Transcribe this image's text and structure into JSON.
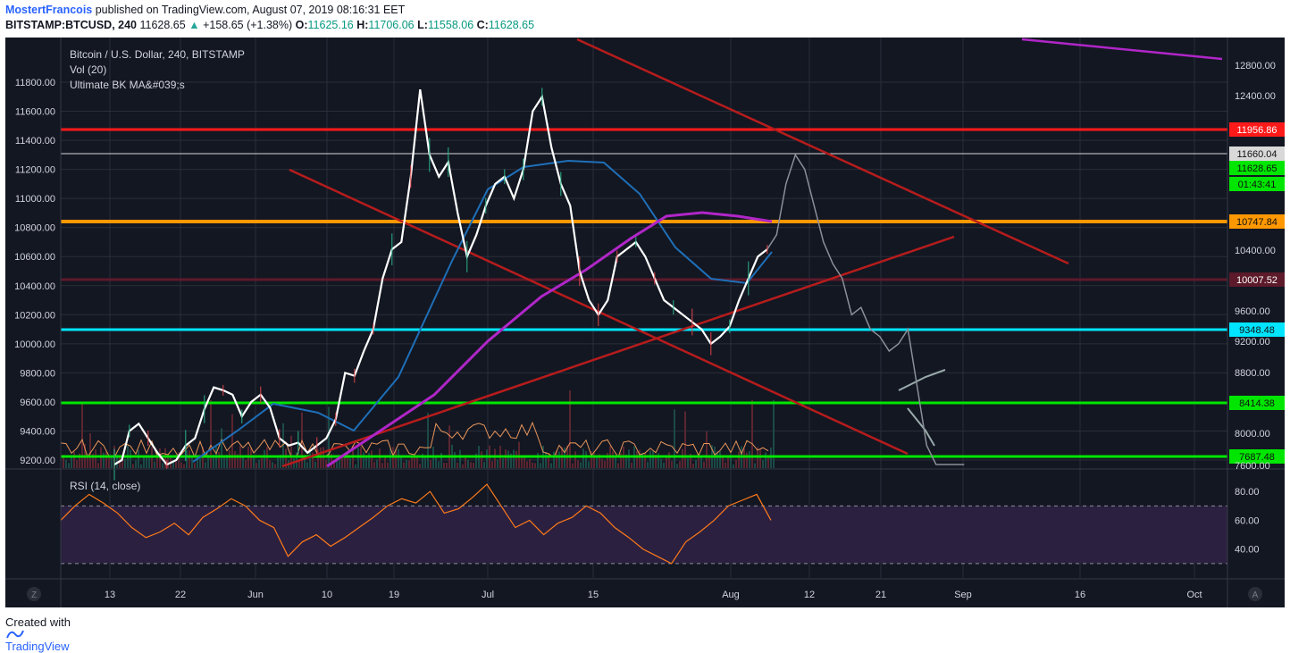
{
  "header": {
    "author": "MostertFrancois",
    "published_text": "published on TradingView.com, August 07, 2019 08:16:31 EET",
    "symbol": "BITSTAMP:BTCUSD, 240",
    "last_price": "11628.65",
    "change": "+158.65 (+1.38%)",
    "open_label": "O:",
    "open_value": "11625.16",
    "high_label": "H:",
    "high_value": "11706.06",
    "low_label": "L:",
    "low_value": "11558.06",
    "close_label": "C:",
    "close_value": "11628.65"
  },
  "legend": {
    "title": "Bitcoin / U.S. Dollar, 240, BITSTAMP",
    "vol": "Vol (20)",
    "ma": "Ultimate BK MA&#039;s"
  },
  "rsi_label": "RSI (14, close)",
  "footer": {
    "created_with": "Created with",
    "brand": "TradingView"
  },
  "colors": {
    "background": "#131722",
    "red_line": "#ff1a1a",
    "orange_line": "#ff9800",
    "dark_red_line": "#5c1a2a",
    "cyan_line": "#00e5ff",
    "green_line": "#00e600",
    "price": "#ffffff",
    "ma_blue": "#1e6fb8",
    "ma_purple": "#b026c8",
    "trendline": "#b71c1c",
    "rsi": "#ff7a1a",
    "rsi_band": "#2b2040"
  },
  "chart_data": [
    {
      "type": "line",
      "title": "Bitcoin / U.S. Dollar, 240, BITSTAMP",
      "left_axis_ticks": [
        "11800.00",
        "11600.00",
        "11400.00",
        "11200.00",
        "11000.00",
        "10800.00",
        "10600.00",
        "10400.00",
        "10200.00",
        "10000.00",
        "9800.00",
        "9600.00",
        "9400.00",
        "9200.00"
      ],
      "right_axis_ticks": [
        "12800.00",
        "12400.00",
        "10400.00",
        "9600.00",
        "9200.00",
        "8800.00",
        "8000.00",
        "7600.00"
      ],
      "x_ticks": [
        "13",
        "22",
        "Jun",
        "10",
        "19",
        "Jul",
        "15",
        "Aug",
        "12",
        "21",
        "Sep",
        "16",
        "Oct"
      ],
      "horizontal_levels": [
        {
          "label": "11956.86",
          "color": "#ff1a1a"
        },
        {
          "label": "11660.04",
          "color": "#d9d9d9"
        },
        {
          "label": "11628.65",
          "color": "#00e600"
        },
        {
          "label": "01:43:41",
          "color": "#00e600"
        },
        {
          "label": "10747.84",
          "color": "#ff9800"
        },
        {
          "label": "10007.52",
          "color": "#5c1a2a"
        },
        {
          "label": "9348.48",
          "color": "#00e5ff"
        },
        {
          "label": "8414.38",
          "color": "#00e600"
        },
        {
          "label": "7687.48",
          "color": "#00e600"
        }
      ],
      "series": [
        {
          "x": [
            0,
            4,
            8,
            13,
            18,
            23,
            28,
            33,
            38,
            43,
            48,
            53,
            58,
            63,
            68,
            73,
            78,
            83,
            88,
            93,
            98,
            103,
            108,
            113,
            118,
            123,
            128,
            133,
            138,
            143,
            148,
            153,
            158,
            163,
            168,
            173,
            178,
            183,
            188,
            193,
            198,
            203,
            208,
            213,
            218,
            223,
            228,
            233,
            238,
            243,
            248,
            253,
            258,
            263,
            268,
            273,
            278,
            283,
            288,
            293,
            298,
            303,
            308,
            313,
            318,
            323,
            328,
            333,
            338,
            343,
            348,
            353,
            358,
            363,
            368,
            373,
            378,
            383,
            388,
            393,
            398,
            403,
            408,
            413,
            418,
            423,
            428,
            433,
            438,
            443,
            448,
            453
          ],
          "values": [
            9150,
            9200,
            9400,
            9450,
            9350,
            9250,
            9150,
            9200,
            9300,
            9350,
            9550,
            9700,
            9680,
            9650,
            9500,
            9600,
            9650,
            9560,
            9350,
            9300,
            9320,
            9250,
            9300,
            9350,
            9480,
            9800,
            9780,
            9950,
            10100,
            10450,
            10650,
            10700,
            11150,
            11750,
            11300,
            11150,
            11250,
            10900,
            10600,
            10750,
            10950,
            11100,
            11150,
            11000,
            11200,
            11600,
            11700,
            11350,
            11100,
            10950,
            10500,
            10300,
            10200,
            10300,
            10600,
            10650,
            10700,
            10600,
            10450,
            10300,
            10250,
            10200,
            10150,
            10100,
            10000,
            10050,
            10120,
            10300,
            10450,
            10600,
            10650,
            10750,
            11100,
            11300,
            11200,
            10950,
            10700,
            10550,
            10450,
            10200,
            10250,
            10100,
            10050,
            9950,
            10000,
            10100,
            9700,
            9300,
            9000,
            8800,
            8600,
            8400
          ]
        }
      ]
    },
    {
      "type": "line",
      "title": "RSI (14, close)",
      "y_ticks": [
        "80.00",
        "60.00",
        "40.00"
      ],
      "ylim": [
        20,
        95
      ],
      "bands": [
        30,
        70
      ],
      "series": [
        {
          "x": [
            0,
            6,
            12,
            18,
            24,
            30,
            36,
            42,
            48,
            54,
            60,
            66,
            72,
            78,
            84,
            90,
            96,
            102,
            108,
            114,
            120,
            126,
            132,
            138,
            144,
            150,
            156,
            162,
            168,
            174,
            180,
            186,
            192,
            198,
            204,
            210,
            216,
            222,
            228,
            234,
            240,
            246,
            252,
            258,
            264,
            270,
            276,
            282,
            288,
            294,
            300
          ],
          "values": [
            60,
            70,
            78,
            72,
            65,
            55,
            48,
            52,
            58,
            50,
            62,
            68,
            75,
            70,
            60,
            55,
            35,
            45,
            50,
            42,
            48,
            55,
            62,
            70,
            75,
            72,
            80,
            65,
            68,
            76,
            85,
            70,
            55,
            60,
            50,
            58,
            62,
            70,
            65,
            55,
            48,
            40,
            35,
            30,
            45,
            52,
            60,
            70,
            74,
            78,
            60
          ]
        }
      ]
    }
  ]
}
